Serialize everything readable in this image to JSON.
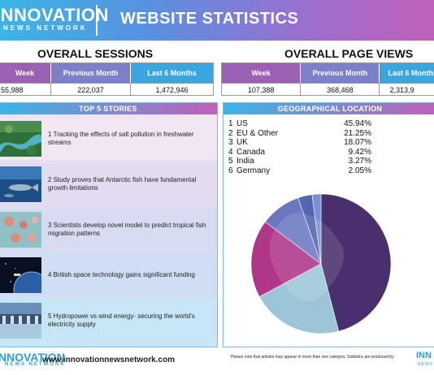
{
  "header": {
    "logo_main": "INNOVATION",
    "logo_sub": "NEWS NETWORK",
    "title": "WEBSITE STATISTICS"
  },
  "sessions": {
    "title": "OVERALL SESSIONS",
    "headers": [
      "Week",
      "Previous Month",
      "Last 6 Months"
    ],
    "values": [
      "55,988",
      "222,037",
      "1,472,946"
    ]
  },
  "pageviews": {
    "title": "OVERALL PAGE VIEWS",
    "headers": [
      "Week",
      "Previous Month",
      "Last 6 Months"
    ],
    "values": [
      "107,388",
      "368,468",
      "2,313,9"
    ]
  },
  "stories": {
    "title": "TOP 5 STORIES",
    "items": [
      {
        "text": "1  Tracking the effects of salt pollution in freshwater streams"
      },
      {
        "text": "2  Study proves that Antarctic fish have fundamental growth limitations"
      },
      {
        "text": "3  Scientists develop novel model to predict tropical fish migration patterns"
      },
      {
        "text": "4  British space technology gains significant funding"
      },
      {
        "text": "5  Hydropower vs wind energy- securing the world's electricity supply"
      }
    ]
  },
  "geo": {
    "title": "GEOGRAPHICAL LOCATION",
    "rows": [
      {
        "n": "1",
        "name": "US",
        "pct": "45.94%"
      },
      {
        "n": "2",
        "name": "EU & Other",
        "pct": "21.25%"
      },
      {
        "n": "3",
        "name": "UK",
        "pct": "18.07%"
      },
      {
        "n": "4",
        "name": "Canada",
        "pct": "9.42%"
      },
      {
        "n": "5",
        "name": "India",
        "pct": "3.27%"
      },
      {
        "n": "6",
        "name": "Germany",
        "pct": "2.05%"
      }
    ]
  },
  "chart_data": {
    "type": "pie",
    "categories": [
      "US",
      "EU & Other",
      "UK",
      "Canada",
      "India",
      "Germany"
    ],
    "values": [
      45.94,
      21.25,
      18.07,
      9.42,
      3.27,
      2.05
    ],
    "colors": [
      "#4a2f6e",
      "#9cc6d8",
      "#b0368a",
      "#6a78c2",
      "#5464b0",
      "#7a90d2"
    ]
  },
  "footer": {
    "logo_main": "INNOVATION",
    "logo_sub": "NEWS NETWORK",
    "url": "www.innovationnewsnetwork.com",
    "note": "Please note that articles may appear in more than one category. Statistics are produced by",
    "logo2_main": "INN",
    "logo2_sub": "NEWS"
  }
}
